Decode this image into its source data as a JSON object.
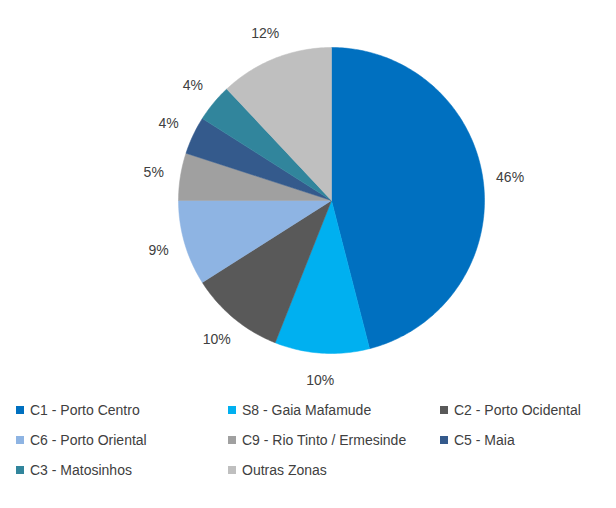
{
  "chart_data": {
    "type": "pie",
    "categories": [
      "C1 - Porto Centro",
      "S8 - Gaia Mafamude",
      "C2 - Porto Ocidental",
      "C6 - Porto Oriental",
      "C9 - Rio Tinto / Ermesinde",
      "C5 - Maia",
      "C3 - Matosinhos",
      "Outras Zonas"
    ],
    "values": [
      46,
      10,
      10,
      9,
      5,
      4,
      4,
      12
    ],
    "value_labels": [
      "46%",
      "10%",
      "10%",
      "9%",
      "5%",
      "4%",
      "4%",
      "12%"
    ],
    "colors": [
      "#0070c0",
      "#00b0f0",
      "#595959",
      "#8eb4e3",
      "#a0a0a0",
      "#345a8c",
      "#31859c",
      "#bfbfbf"
    ],
    "data_labels": true,
    "legend": "bottom"
  }
}
